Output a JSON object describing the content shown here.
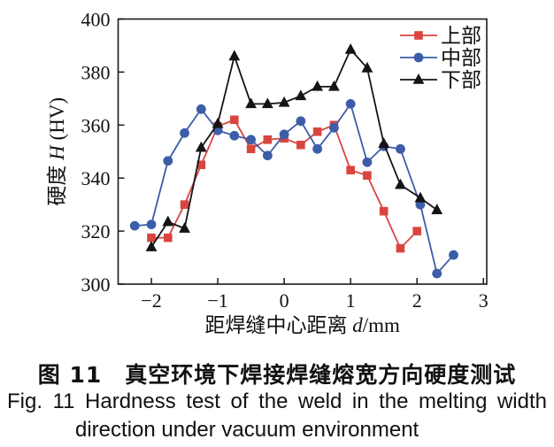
{
  "figure": {
    "caption_zh": "图 11　真空环境下焊接焊缝熔宽方向硬度测试",
    "caption_en_line1": "Fig. 11  Hardness test of the weld in the melting width",
    "caption_en_line2": "direction under vacuum environment"
  },
  "chart_data": {
    "type": "line",
    "title": "",
    "xlabel": "距焊缝中心距离 d/mm",
    "xlabel_parts": {
      "prefix": "距焊缝中心距离 ",
      "italic": "d",
      "suffix": "/mm"
    },
    "ylabel": "硬度 H (HV)",
    "ylabel_parts": {
      "prefix": "硬度 ",
      "italic": "H",
      "suffix": " (HV)"
    },
    "xlim": [
      -2.5,
      3.05
    ],
    "ylim": [
      300,
      400
    ],
    "xticks": [
      -2,
      -1,
      0,
      1,
      2,
      3
    ],
    "yticks": [
      300,
      320,
      340,
      360,
      380,
      400
    ],
    "grid": false,
    "legend_position": "top-right",
    "axis_color": "#1a1a1a",
    "series": [
      {
        "id": "upper",
        "name": "上部",
        "color": "#d8453f",
        "marker": "square",
        "points": [
          [
            -2,
            317.5
          ],
          [
            -1.75,
            317.5
          ],
          [
            -1.5,
            330
          ],
          [
            -1.25,
            345
          ],
          [
            -1,
            359.5
          ],
          [
            -0.75,
            362
          ],
          [
            -0.5,
            351
          ],
          [
            -0.25,
            354.5
          ],
          [
            0,
            355
          ],
          [
            0.25,
            352.5
          ],
          [
            0.5,
            357.5
          ],
          [
            0.75,
            360
          ],
          [
            1,
            343
          ],
          [
            1.25,
            341
          ],
          [
            1.5,
            327.5
          ],
          [
            1.75,
            313.5
          ],
          [
            2,
            320
          ]
        ]
      },
      {
        "id": "middle",
        "name": "中部",
        "color": "#3c5da8",
        "marker": "circle",
        "points": [
          [
            -2.25,
            322
          ],
          [
            -2,
            322.5
          ],
          [
            -1.75,
            346.5
          ],
          [
            -1.5,
            357
          ],
          [
            -1.25,
            366
          ],
          [
            -1,
            358
          ],
          [
            -0.75,
            356
          ],
          [
            -0.5,
            354.5
          ],
          [
            -0.25,
            348.5
          ],
          [
            0,
            356.5
          ],
          [
            0.25,
            361.5
          ],
          [
            0.5,
            351
          ],
          [
            0.75,
            359
          ],
          [
            1,
            368
          ],
          [
            1.25,
            346
          ],
          [
            1.5,
            352
          ],
          [
            1.75,
            351
          ],
          [
            2.05,
            330
          ],
          [
            2.3,
            304
          ],
          [
            2.55,
            311
          ]
        ]
      },
      {
        "id": "lower",
        "name": "下部",
        "color": "#141414",
        "marker": "triangle",
        "points": [
          [
            -2,
            314
          ],
          [
            -1.75,
            323.5
          ],
          [
            -1.5,
            321
          ],
          [
            -1.25,
            351.5
          ],
          [
            -1,
            360.5
          ],
          [
            -0.75,
            386
          ],
          [
            -0.5,
            368
          ],
          [
            -0.25,
            368
          ],
          [
            0,
            368.5
          ],
          [
            0.25,
            371
          ],
          [
            0.5,
            374.5
          ],
          [
            0.75,
            374.5
          ],
          [
            1,
            388.5
          ],
          [
            1.25,
            381.5
          ],
          [
            1.5,
            353
          ],
          [
            1.75,
            337.5
          ],
          [
            2.05,
            332.5
          ],
          [
            2.3,
            328
          ]
        ]
      }
    ]
  }
}
